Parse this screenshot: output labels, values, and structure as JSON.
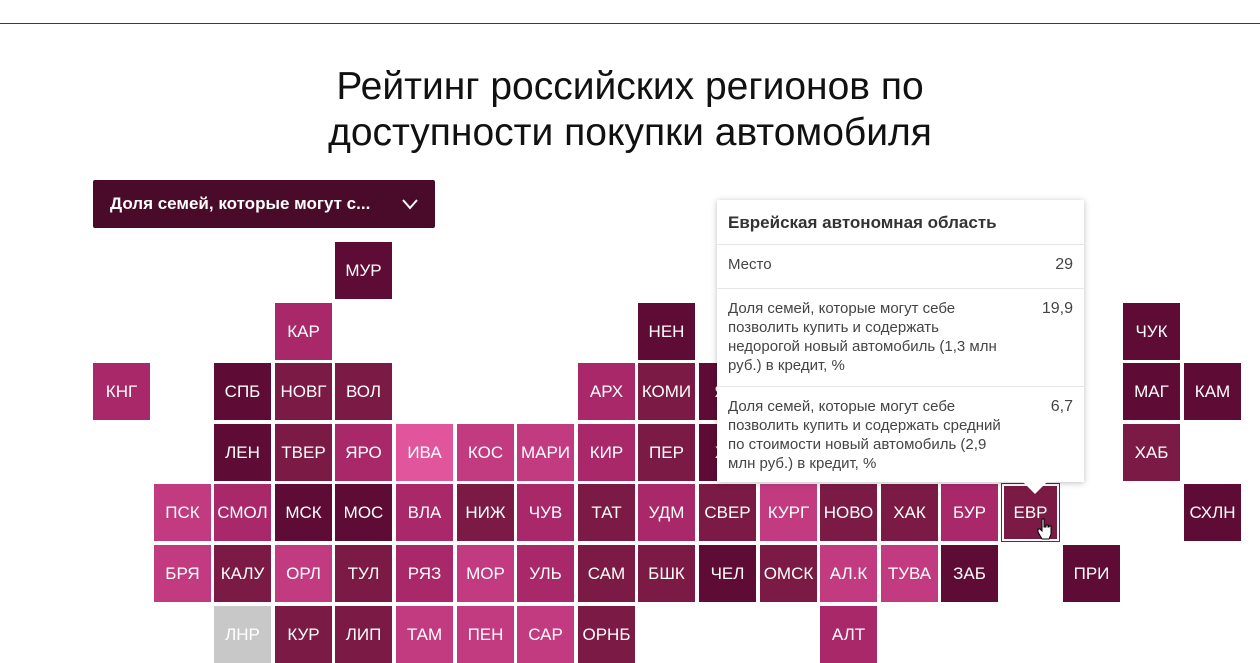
{
  "title_line1": "Рейтинг российских регионов по",
  "title_line2": "доступности покупки автомобиля",
  "dropdown": {
    "label": "Доля семей, которые могут с...",
    "icon": "chevron-down-icon"
  },
  "colors": {
    "dark": "#5e0c35",
    "maroon": "#7a1a45",
    "magenta": "#a8286a",
    "pink": "#c23b80",
    "hotpink": "#e0559c",
    "gray": "#c8c8c8",
    "dropdown_bg": "#4a0b2a"
  },
  "tooltip": {
    "title": "Еврейская автономная область",
    "rows": [
      {
        "label": "Место",
        "value": "29"
      },
      {
        "label": "Доля семей, которые могут себе позволить купить и содержать недорогой новый автомобиль (1,3 млн руб.) в кредит, %",
        "value": "19,9"
      },
      {
        "label": "Доля семей, которые могут себе позволить купить и содержать средний по стоимости новый автомобиль (2,9 млн руб.) в кредит, %",
        "value": "6,7"
      }
    ]
  },
  "regions": [
    {
      "code": "МУР",
      "col": 4,
      "row": 0,
      "tone": "dark"
    },
    {
      "code": "КАР",
      "col": 3,
      "row": 1,
      "tone": "magenta"
    },
    {
      "code": "НЕН",
      "col": 9,
      "row": 1,
      "tone": "dark"
    },
    {
      "code": "ЧУК",
      "col": 17,
      "row": 1,
      "tone": "dark"
    },
    {
      "code": "КНГ",
      "col": 0,
      "row": 2,
      "tone": "magenta"
    },
    {
      "code": "СПБ",
      "col": 2,
      "row": 2,
      "tone": "dark"
    },
    {
      "code": "НОВГ",
      "col": 3,
      "row": 2,
      "tone": "maroon"
    },
    {
      "code": "ВОЛ",
      "col": 4,
      "row": 2,
      "tone": "maroon"
    },
    {
      "code": "АРХ",
      "col": 8,
      "row": 2,
      "tone": "magenta"
    },
    {
      "code": "КОМИ",
      "col": 9,
      "row": 2,
      "tone": "maroon"
    },
    {
      "code": "ЯМ",
      "col": 10,
      "row": 2,
      "tone": "dark"
    },
    {
      "code": "МАГ",
      "col": 17,
      "row": 2,
      "tone": "dark"
    },
    {
      "code": "КАМ",
      "col": 18,
      "row": 2,
      "tone": "dark"
    },
    {
      "code": "ЛЕН",
      "col": 2,
      "row": 3,
      "tone": "dark"
    },
    {
      "code": "ТВЕР",
      "col": 3,
      "row": 3,
      "tone": "maroon"
    },
    {
      "code": "ЯРО",
      "col": 4,
      "row": 3,
      "tone": "magenta"
    },
    {
      "code": "ИВА",
      "col": 5,
      "row": 3,
      "tone": "hotpink"
    },
    {
      "code": "КОС",
      "col": 6,
      "row": 3,
      "tone": "pink"
    },
    {
      "code": "МАРИ",
      "col": 7,
      "row": 3,
      "tone": "pink"
    },
    {
      "code": "КИР",
      "col": 8,
      "row": 3,
      "tone": "magenta"
    },
    {
      "code": "ПЕР",
      "col": 9,
      "row": 3,
      "tone": "maroon"
    },
    {
      "code": "ХМ",
      "col": 10,
      "row": 3,
      "tone": "dark"
    },
    {
      "code": "ХАБ",
      "col": 17,
      "row": 3,
      "tone": "maroon"
    },
    {
      "code": "ПСК",
      "col": 1,
      "row": 4,
      "tone": "pink"
    },
    {
      "code": "СМОЛ",
      "col": 2,
      "row": 4,
      "tone": "magenta"
    },
    {
      "code": "МСК",
      "col": 3,
      "row": 4,
      "tone": "dark"
    },
    {
      "code": "МОС",
      "col": 4,
      "row": 4,
      "tone": "dark"
    },
    {
      "code": "ВЛА",
      "col": 5,
      "row": 4,
      "tone": "magenta"
    },
    {
      "code": "НИЖ",
      "col": 6,
      "row": 4,
      "tone": "maroon"
    },
    {
      "code": "ЧУВ",
      "col": 7,
      "row": 4,
      "tone": "magenta"
    },
    {
      "code": "ТАТ",
      "col": 8,
      "row": 4,
      "tone": "maroon"
    },
    {
      "code": "УДМ",
      "col": 9,
      "row": 4,
      "tone": "magenta"
    },
    {
      "code": "СВЕР",
      "col": 10,
      "row": 4,
      "tone": "maroon"
    },
    {
      "code": "КУРГ",
      "col": 11,
      "row": 4,
      "tone": "pink"
    },
    {
      "code": "НОВО",
      "col": 12,
      "row": 4,
      "tone": "maroon"
    },
    {
      "code": "ХАК",
      "col": 13,
      "row": 4,
      "tone": "maroon"
    },
    {
      "code": "БУР",
      "col": 14,
      "row": 4,
      "tone": "magenta"
    },
    {
      "code": "ЕВР",
      "col": 15,
      "row": 4,
      "tone": "maroon",
      "selected": true
    },
    {
      "code": "СХЛН",
      "col": 18,
      "row": 4,
      "tone": "dark"
    },
    {
      "code": "БРЯ",
      "col": 1,
      "row": 5,
      "tone": "pink"
    },
    {
      "code": "КАЛУ",
      "col": 2,
      "row": 5,
      "tone": "maroon"
    },
    {
      "code": "ОРЛ",
      "col": 3,
      "row": 5,
      "tone": "pink"
    },
    {
      "code": "ТУЛ",
      "col": 4,
      "row": 5,
      "tone": "maroon"
    },
    {
      "code": "РЯЗ",
      "col": 5,
      "row": 5,
      "tone": "magenta"
    },
    {
      "code": "МОР",
      "col": 6,
      "row": 5,
      "tone": "pink"
    },
    {
      "code": "УЛЬ",
      "col": 7,
      "row": 5,
      "tone": "magenta"
    },
    {
      "code": "САМ",
      "col": 8,
      "row": 5,
      "tone": "maroon"
    },
    {
      "code": "БШК",
      "col": 9,
      "row": 5,
      "tone": "maroon"
    },
    {
      "code": "ЧЕЛ",
      "col": 10,
      "row": 5,
      "tone": "dark"
    },
    {
      "code": "ОМСК",
      "col": 11,
      "row": 5,
      "tone": "maroon"
    },
    {
      "code": "АЛ.К",
      "col": 12,
      "row": 5,
      "tone": "pink"
    },
    {
      "code": "ТУВА",
      "col": 13,
      "row": 5,
      "tone": "pink"
    },
    {
      "code": "ЗАБ",
      "col": 14,
      "row": 5,
      "tone": "dark"
    },
    {
      "code": "ПРИ",
      "col": 16,
      "row": 5,
      "tone": "dark"
    },
    {
      "code": "ЛНР",
      "col": 2,
      "row": 6,
      "tone": "gray"
    },
    {
      "code": "КУР",
      "col": 3,
      "row": 6,
      "tone": "maroon"
    },
    {
      "code": "ЛИП",
      "col": 4,
      "row": 6,
      "tone": "maroon"
    },
    {
      "code": "ТАМ",
      "col": 5,
      "row": 6,
      "tone": "pink"
    },
    {
      "code": "ПЕН",
      "col": 6,
      "row": 6,
      "tone": "pink"
    },
    {
      "code": "САР",
      "col": 7,
      "row": 6,
      "tone": "pink"
    },
    {
      "code": "ОРНБ",
      "col": 8,
      "row": 6,
      "tone": "maroon"
    },
    {
      "code": "АЛТ",
      "col": 12,
      "row": 6,
      "tone": "magenta"
    }
  ]
}
